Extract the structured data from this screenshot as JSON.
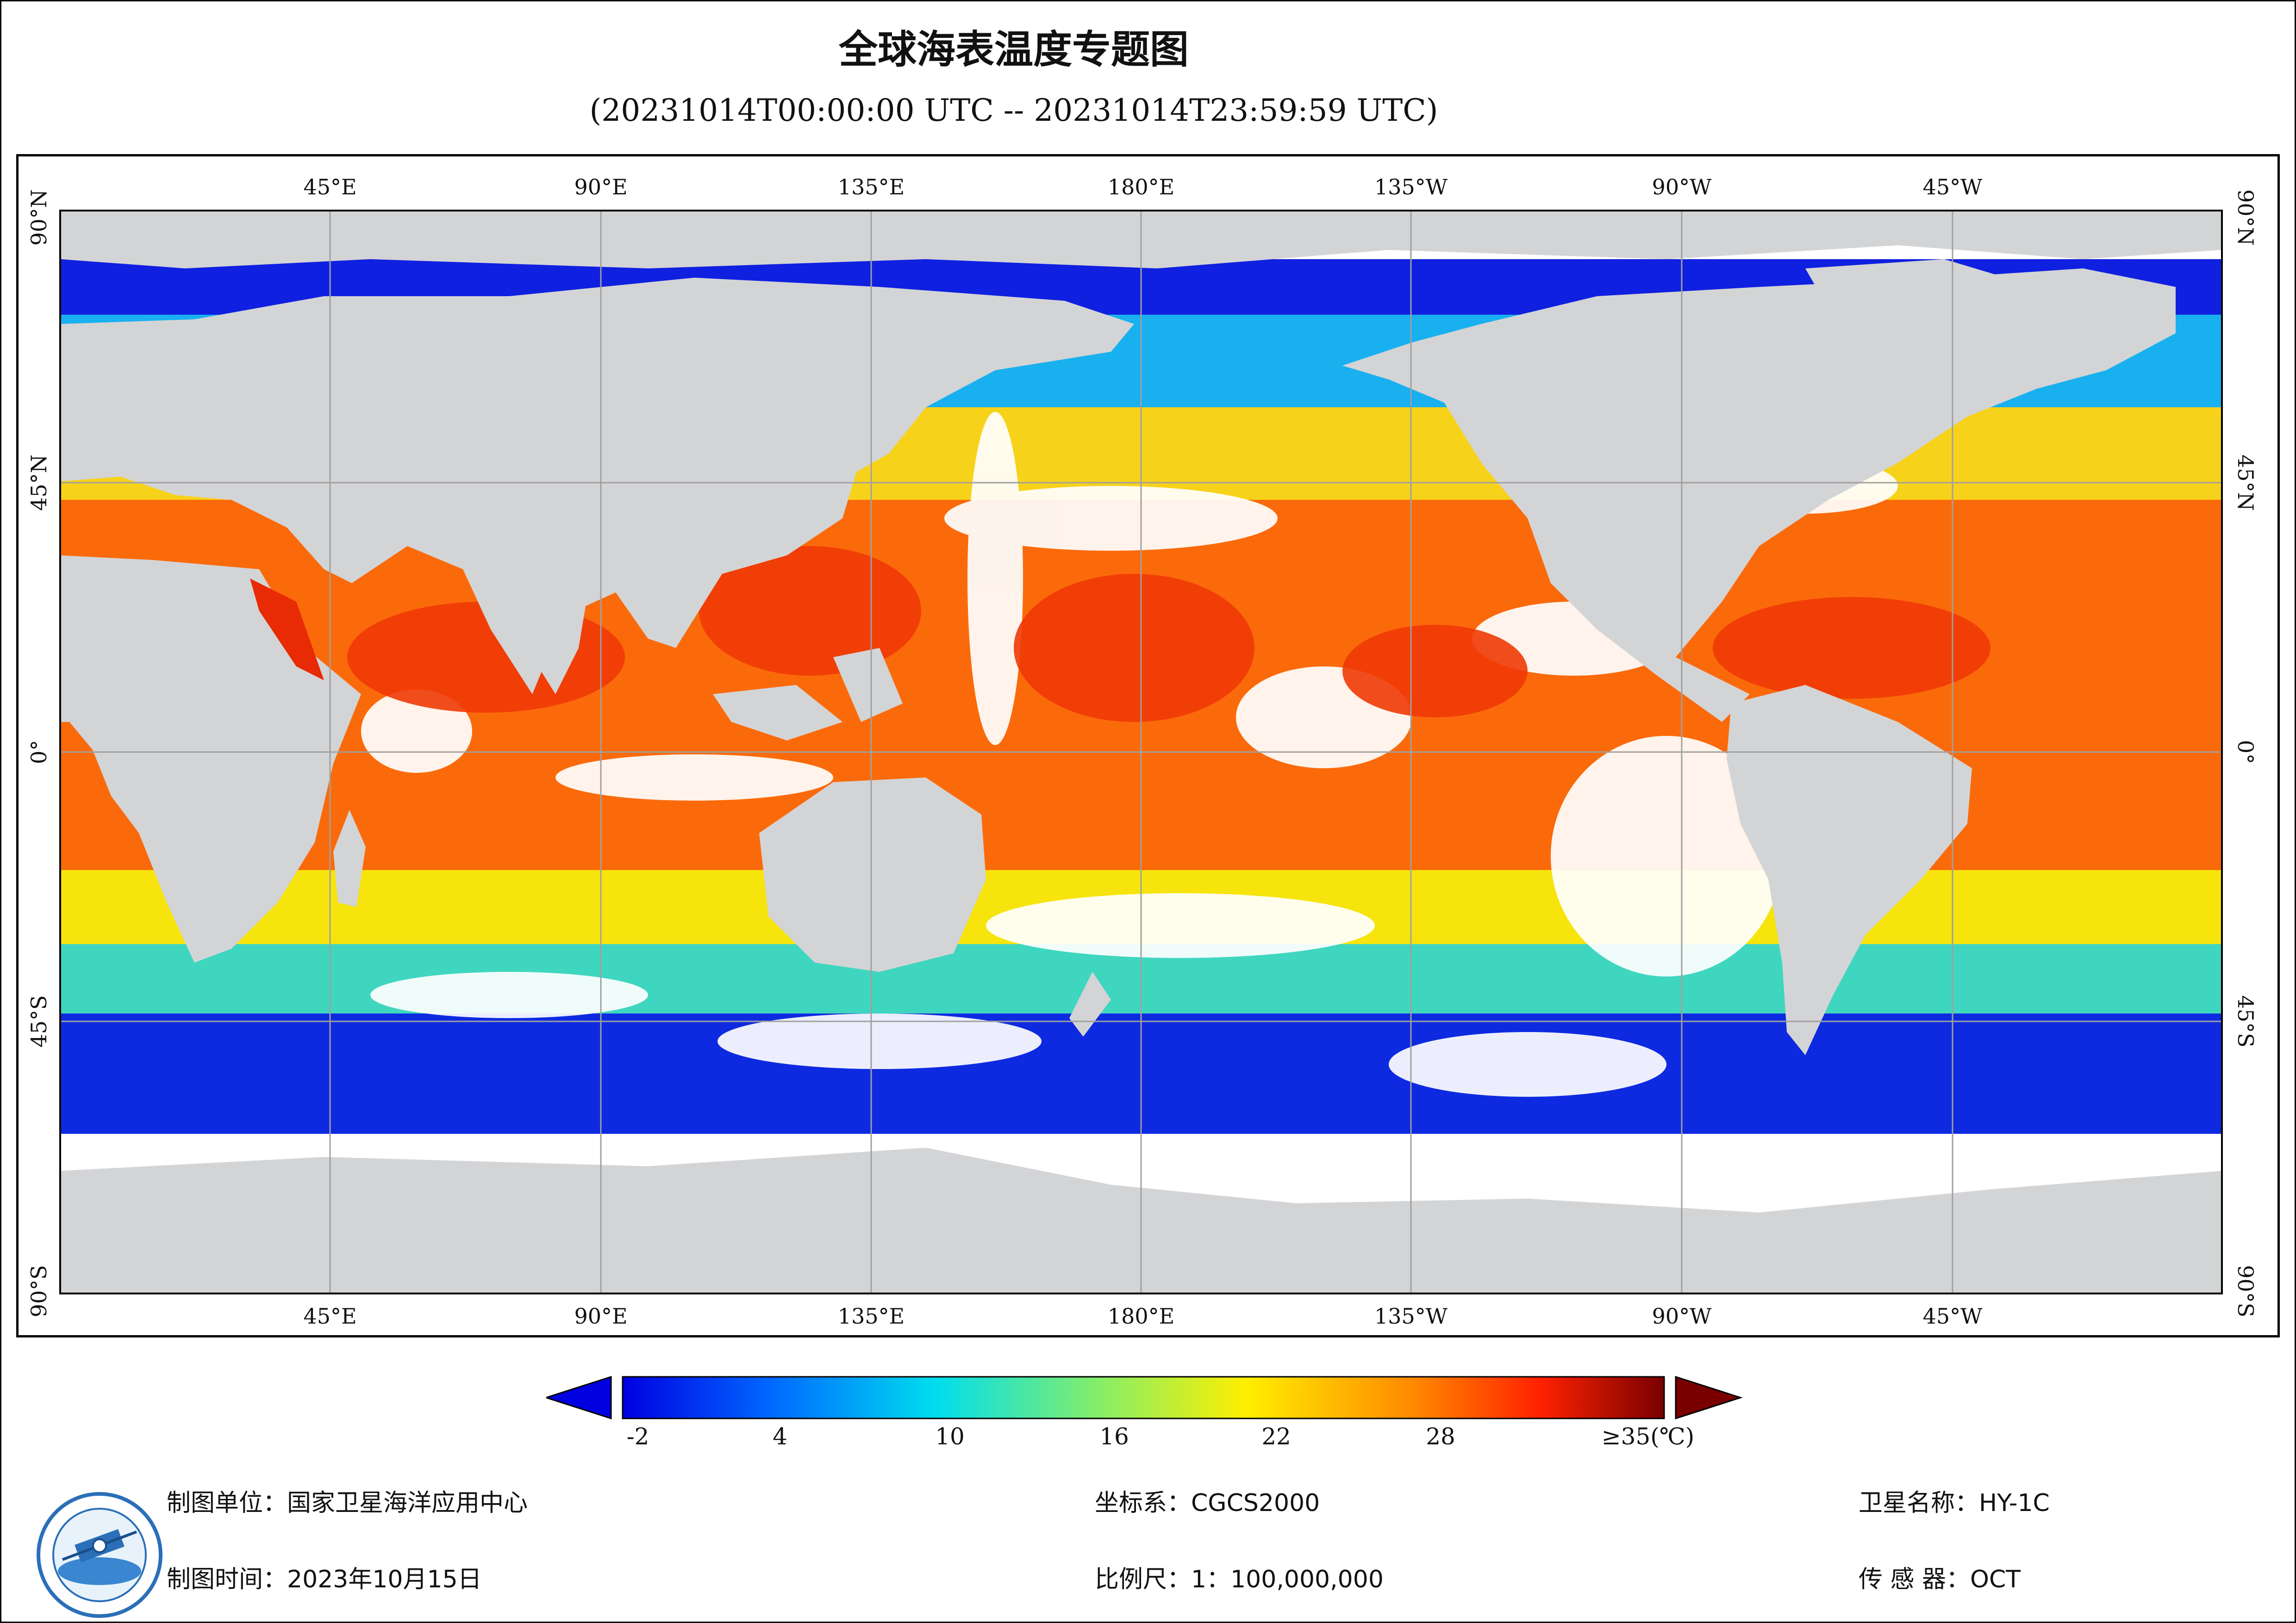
{
  "title": "全球海表温度专题图",
  "subtitle": "(20231014T00:00:00 UTC -- 20231014T23:59:59 UTC)",
  "map": {
    "top_lon_labels": [
      "45°E",
      "90°E",
      "135°E",
      "180°E",
      "135°W",
      "90°W",
      "45°W"
    ],
    "bottom_lon_labels": [
      "45°E",
      "90°E",
      "135°E",
      "180°E",
      "135°W",
      "90°W",
      "45°W"
    ],
    "lat_labels": [
      "90°N",
      "45°N",
      "0°",
      "45°S",
      "90°S"
    ],
    "colors": {
      "land": "#d3d4d6",
      "cloud": "#ffffff",
      "grid": "#a0a0a0"
    }
  },
  "legend": {
    "tick_labels": [
      "-2",
      "4",
      "10",
      "16",
      "22",
      "28",
      "≥35(℃)"
    ],
    "range": [
      -2,
      35
    ],
    "colors": [
      "#0000e0",
      "#0066ff",
      "#00ddee",
      "#88ee66",
      "#ffee00",
      "#ff8800",
      "#ff2200",
      "#7a0000"
    ]
  },
  "footer": {
    "unit": "制图单位：国家卫星海洋应用中心",
    "time": "制图时间：2023年10月15日",
    "crs": "坐标系：CGCS2000",
    "scale": "比例尺：1：100,000,000",
    "satellite": "卫星名称：HY-1C",
    "sensor": "传  感  器：OCT"
  }
}
